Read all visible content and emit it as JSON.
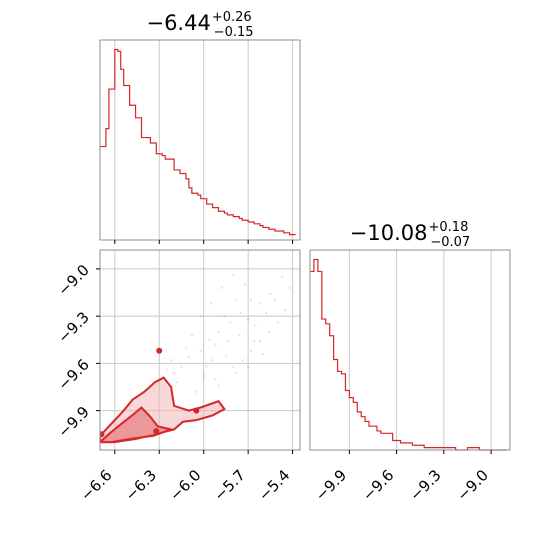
{
  "chart_data": [
    {
      "type": "histogram",
      "panel": "top-left",
      "title_value": "−6.44",
      "title_plus": "+0.26",
      "title_minus": "−0.15",
      "xlim": [
        -6.7,
        -5.35
      ],
      "x_ticks": [
        -6.6,
        -6.3,
        -6.0,
        -5.7,
        -5.4
      ],
      "grid": true,
      "color": "#d62728",
      "bin_start": -6.68,
      "bin_width": 0.02,
      "counts": [
        52,
        62,
        84,
        84,
        106,
        105,
        95,
        86,
        86,
        75,
        75,
        68,
        68,
        57,
        57,
        57,
        54,
        54,
        48,
        48,
        47,
        45,
        45,
        45,
        39,
        39,
        37,
        37,
        34,
        29,
        26,
        26,
        25,
        23,
        23,
        20,
        20,
        18,
        18,
        16,
        16,
        15,
        14,
        14,
        13,
        13,
        12,
        11,
        11,
        10,
        10,
        9,
        9,
        8,
        7,
        7,
        6,
        6,
        5,
        5,
        5,
        4,
        4,
        3,
        3
      ]
    },
    {
      "type": "scatter_contour",
      "panel": "bottom-left",
      "xlim": [
        -6.7,
        -5.35
      ],
      "ylim": [
        -10.15,
        -8.88
      ],
      "x_ticks": [
        -6.6,
        -6.3,
        -6.0,
        -5.7,
        -5.4
      ],
      "x_tick_labels": [
        "−6.6",
        "−6.3",
        "−6.0",
        "−5.7",
        "−5.4"
      ],
      "y_ticks": [
        -9.0,
        -9.3,
        -9.6,
        -9.9
      ],
      "y_tick_labels": [
        "−9.0",
        "−9.3",
        "−9.6",
        "−9.9"
      ],
      "grid": true,
      "color": "#d62728",
      "outer_contour": [
        [
          -6.7,
          -10.06
        ],
        [
          -6.62,
          -9.98
        ],
        [
          -6.55,
          -9.91
        ],
        [
          -6.48,
          -9.83
        ],
        [
          -6.4,
          -9.78
        ],
        [
          -6.33,
          -9.72
        ],
        [
          -6.27,
          -9.69
        ],
        [
          -6.22,
          -9.75
        ],
        [
          -6.2,
          -9.87
        ],
        [
          -6.1,
          -9.9
        ],
        [
          -6.02,
          -9.88
        ],
        [
          -5.9,
          -9.84
        ],
        [
          -5.86,
          -9.89
        ],
        [
          -5.94,
          -9.93
        ],
        [
          -6.05,
          -9.96
        ],
        [
          -6.14,
          -9.97
        ],
        [
          -6.2,
          -10.02
        ],
        [
          -6.33,
          -10.05
        ],
        [
          -6.46,
          -10.08
        ],
        [
          -6.6,
          -10.1
        ],
        [
          -6.7,
          -10.1
        ]
      ],
      "inner_contour": [
        [
          -6.7,
          -10.1
        ],
        [
          -6.63,
          -10.04
        ],
        [
          -6.55,
          -9.98
        ],
        [
          -6.47,
          -9.92
        ],
        [
          -6.42,
          -9.88
        ],
        [
          -6.36,
          -9.94
        ],
        [
          -6.31,
          -10.0
        ],
        [
          -6.22,
          -10.02
        ],
        [
          -6.34,
          -10.06
        ],
        [
          -6.5,
          -10.08
        ],
        [
          -6.62,
          -10.1
        ]
      ],
      "islands": [
        [
          -6.3,
          -9.52
        ],
        [
          -6.05,
          -9.9
        ],
        [
          -6.32,
          -10.03
        ],
        [
          -6.69,
          -10.05
        ]
      ],
      "points": [
        [
          -6.05,
          -9.78
        ],
        [
          -5.92,
          -9.7
        ],
        [
          -5.8,
          -9.62
        ],
        [
          -5.74,
          -9.58
        ],
        [
          -5.68,
          -9.52
        ],
        [
          -5.62,
          -9.46
        ],
        [
          -5.56,
          -9.4
        ],
        [
          -5.5,
          -9.34
        ],
        [
          -5.45,
          -9.26
        ],
        [
          -5.42,
          -9.12
        ],
        [
          -5.47,
          -9.05
        ],
        [
          -5.55,
          -9.16
        ],
        [
          -5.62,
          -9.22
        ],
        [
          -5.68,
          -9.2
        ],
        [
          -5.75,
          -9.28
        ],
        [
          -5.82,
          -9.34
        ],
        [
          -5.9,
          -9.4
        ],
        [
          -5.96,
          -9.45
        ],
        [
          -6.02,
          -9.52
        ],
        [
          -6.1,
          -9.56
        ],
        [
          -6.15,
          -9.62
        ],
        [
          -6.2,
          -9.66
        ],
        [
          -6.25,
          -9.64
        ],
        [
          -5.85,
          -9.55
        ],
        [
          -5.78,
          -9.66
        ],
        [
          -5.7,
          -9.62
        ],
        [
          -5.95,
          -9.22
        ],
        [
          -5.88,
          -9.12
        ],
        [
          -5.8,
          -9.04
        ],
        [
          -5.72,
          -9.1
        ],
        [
          -6.02,
          -9.3
        ],
        [
          -6.08,
          -9.42
        ],
        [
          -5.65,
          -9.36
        ],
        [
          -5.58,
          -9.28
        ],
        [
          -5.52,
          -9.2
        ],
        [
          -6.12,
          -9.5
        ],
        [
          -5.98,
          -9.62
        ],
        [
          -5.9,
          -9.74
        ],
        [
          -6.18,
          -9.72
        ],
        [
          -5.84,
          -9.46
        ],
        [
          -5.76,
          -9.42
        ],
        [
          -6.0,
          -9.68
        ],
        [
          -6.22,
          -9.58
        ],
        [
          -5.66,
          -9.46
        ],
        [
          -5.6,
          -9.54
        ],
        [
          -5.94,
          -9.58
        ],
        [
          -5.86,
          -9.3
        ],
        [
          -5.78,
          -9.2
        ],
        [
          -5.7,
          -9.32
        ],
        [
          -5.92,
          -9.48
        ]
      ]
    },
    {
      "type": "histogram",
      "panel": "bottom-right",
      "title_value": "−10.08",
      "title_plus": "+0.18",
      "title_minus": "−0.07",
      "xlim": [
        -10.15,
        -8.88
      ],
      "x_ticks": [
        -9.9,
        -9.6,
        -9.3,
        -9.0
      ],
      "x_tick_labels": [
        "−9.9",
        "−9.6",
        "−9.3",
        "−9.0"
      ],
      "grid": true,
      "color": "#d62728",
      "bin_start": -10.15,
      "bin_width": 0.025,
      "counts": [
        75,
        80,
        75,
        55,
        53,
        48,
        38,
        33,
        32,
        25,
        22,
        20,
        16,
        14,
        12,
        10,
        10,
        8,
        7,
        7,
        7,
        4,
        4,
        3,
        3,
        3,
        2,
        2,
        2,
        1,
        1,
        1,
        1,
        1,
        1,
        1,
        1,
        0,
        0,
        0,
        1,
        1,
        1,
        0,
        0,
        0,
        0,
        0,
        0,
        0
      ]
    }
  ]
}
